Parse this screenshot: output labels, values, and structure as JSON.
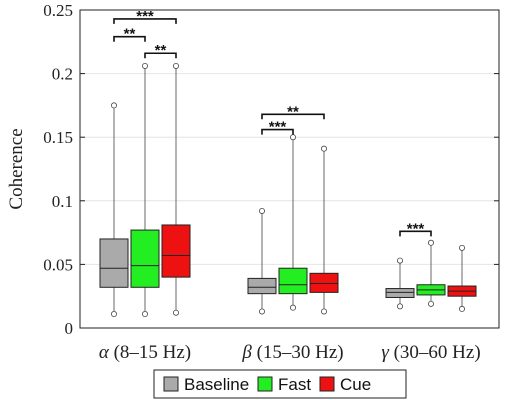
{
  "chart_data": {
    "type": "box",
    "title": "",
    "ylabel": "Coherence",
    "xlabel": "",
    "ylim": [
      0,
      0.25
    ],
    "yticks": [
      0,
      0.05,
      0.1,
      0.15,
      0.2,
      0.25
    ],
    "ytick_labels": [
      "0",
      "0.05",
      "0.1",
      "0.15",
      "0.2",
      "0.25"
    ],
    "grid": "horizontal",
    "legend_position": "bottom",
    "categories": [
      "α (8–15 Hz)",
      "β (15–30 Hz)",
      "γ (30–60 Hz)"
    ],
    "category_parts": [
      {
        "symbol": "α",
        "range": " (8–15 Hz)"
      },
      {
        "symbol": "β",
        "range": " (15–30 Hz)"
      },
      {
        "symbol": "γ",
        "range": " (30–60 Hz)"
      }
    ],
    "series": [
      {
        "name": "Baseline",
        "color": "#aaaaaa",
        "boxes": [
          {
            "min": 0.011,
            "q1": 0.032,
            "median": 0.047,
            "q3": 0.07,
            "max": 0.175
          },
          {
            "min": 0.013,
            "q1": 0.027,
            "median": 0.032,
            "q3": 0.039,
            "max": 0.092
          },
          {
            "min": 0.017,
            "q1": 0.024,
            "median": 0.028,
            "q3": 0.031,
            "max": 0.053
          }
        ]
      },
      {
        "name": "Fast",
        "color": "#22ee22",
        "boxes": [
          {
            "min": 0.011,
            "q1": 0.032,
            "median": 0.049,
            "q3": 0.077,
            "max": 0.206
          },
          {
            "min": 0.016,
            "q1": 0.027,
            "median": 0.034,
            "q3": 0.047,
            "max": 0.15
          },
          {
            "min": 0.019,
            "q1": 0.026,
            "median": 0.03,
            "q3": 0.034,
            "max": 0.067
          }
        ]
      },
      {
        "name": "Cue",
        "color": "#ee1111",
        "boxes": [
          {
            "min": 0.012,
            "q1": 0.04,
            "median": 0.057,
            "q3": 0.081,
            "max": 0.206
          },
          {
            "min": 0.013,
            "q1": 0.028,
            "median": 0.035,
            "q3": 0.043,
            "max": 0.141
          },
          {
            "min": 0.015,
            "q1": 0.025,
            "median": 0.029,
            "q3": 0.033,
            "max": 0.063
          }
        ]
      }
    ],
    "significance": [
      {
        "category": 0,
        "from": 0,
        "to": 2,
        "level": 0.243,
        "label": "***"
      },
      {
        "category": 0,
        "from": 0,
        "to": 1,
        "level": 0.229,
        "label": "**"
      },
      {
        "category": 0,
        "from": 1,
        "to": 2,
        "level": 0.216,
        "label": "**"
      },
      {
        "category": 1,
        "from": 0,
        "to": 2,
        "level": 0.168,
        "label": "**"
      },
      {
        "category": 1,
        "from": 0,
        "to": 1,
        "level": 0.156,
        "label": "***"
      },
      {
        "category": 2,
        "from": 0,
        "to": 1,
        "level": 0.076,
        "label": "***"
      }
    ]
  }
}
